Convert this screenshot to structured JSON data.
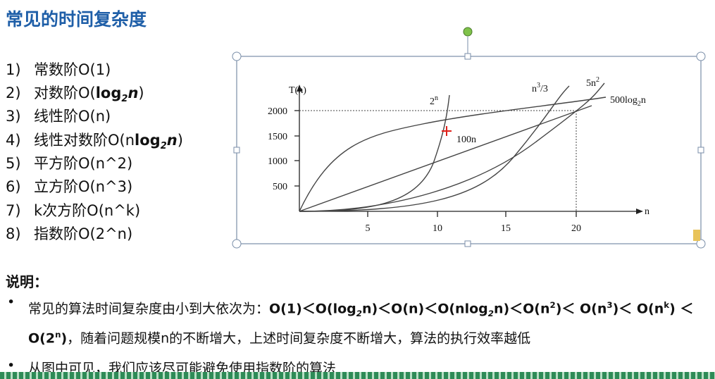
{
  "title": "常见的时间复杂度",
  "list": [
    {
      "num": "1)",
      "text": "常数阶O(1)"
    },
    {
      "num": "2)",
      "parts": [
        "对数阶O(",
        "log",
        "2",
        "n",
        ")"
      ]
    },
    {
      "num": "3)",
      "text": "线性阶O(n)"
    },
    {
      "num": "4)",
      "parts": [
        "线性对数阶O(n",
        "log",
        "2",
        "n",
        ")"
      ]
    },
    {
      "num": "5)",
      "text": "平方阶O(n^2)"
    },
    {
      "num": "6)",
      "text": "立方阶O(n^3)"
    },
    {
      "num": "7)",
      "text": "k次方阶O(n^k)"
    },
    {
      "num": "8)",
      "text": "指数阶O(2^n)"
    }
  ],
  "chart": {
    "y_label": "T(n)",
    "x_label": "n",
    "yticks": [
      "500",
      "1000",
      "1500",
      "2000"
    ],
    "xticks": [
      "5",
      "10",
      "15",
      "20"
    ],
    "curves": [
      [
        "2",
        "n"
      ],
      "100n",
      [
        "n",
        "3",
        "/3"
      ],
      [
        "5n",
        "2"
      ],
      [
        "500log",
        "2",
        "n"
      ]
    ]
  },
  "note": {
    "heading": "说明：",
    "bullets": [
      [
        "常见的算法时间复杂度由小到大依次为：",
        "O(1)＜O(log",
        "2",
        "n)＜O(n)＜O(nlog",
        "2",
        "n)＜O(n",
        "2",
        ")＜ O(n",
        "3",
        ")＜ O(n",
        "k",
        ") ＜O(2",
        "n",
        ")",
        "，随着问题规模n的不断增大，上述时间复杂度不断增大，算法的执行效率越低"
      ],
      [
        "从图中可见，我们应该尽可能避免使用指数阶的算法"
      ]
    ]
  }
}
